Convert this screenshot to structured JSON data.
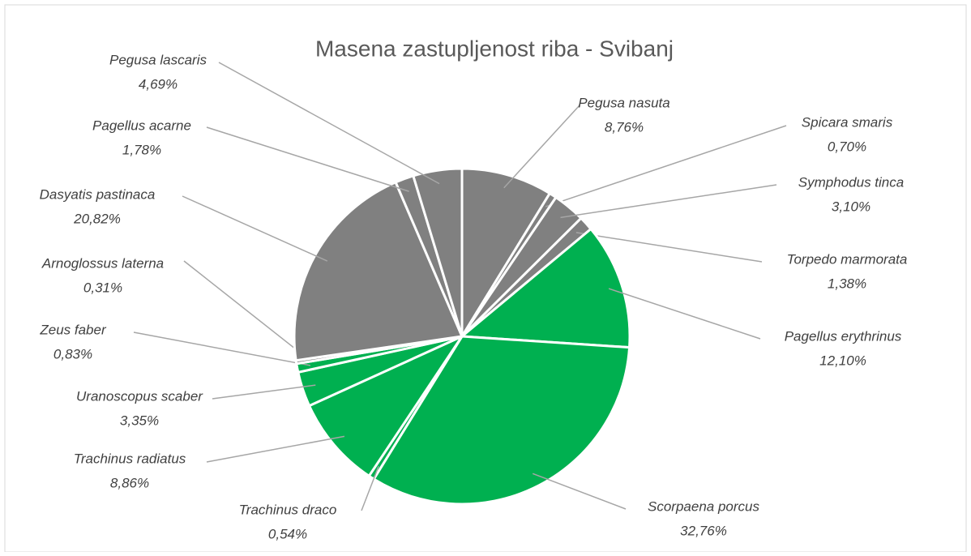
{
  "chart_data": {
    "type": "pie",
    "title": "Masena zastupljenost riba - Svibanj",
    "categories": [
      "Pegusa nasuta",
      "Spicara smaris",
      "Symphodus tinca",
      "Torpedo marmorata",
      "Pagellus erythrinus",
      "Scorpaena porcus",
      "Trachinus draco",
      "Trachinus radiatus",
      "Uranoscopus scaber",
      "Zeus faber",
      "Arnoglossus laterna",
      "Dasyatis pastinaca",
      "Pagellus acarne",
      "Pegusa lascaris"
    ],
    "values": [
      8.76,
      0.7,
      3.1,
      1.38,
      12.1,
      32.76,
      0.54,
      8.86,
      3.35,
      0.83,
      0.31,
      20.82,
      1.78,
      4.69
    ],
    "value_labels": [
      "8,76%",
      "0,70%",
      "3,10%",
      "1,38%",
      "12,10%",
      "32,76%",
      "0,54%",
      "8,86%",
      "3,35%",
      "0,83%",
      "0,31%",
      "20,82%",
      "1,78%",
      "4,69%"
    ],
    "colors": [
      "#808080",
      "#808080",
      "#808080",
      "#808080",
      "#00b050",
      "#00b050",
      "#00b050",
      "#00b050",
      "#00b050",
      "#00b050",
      "#808080",
      "#808080",
      "#808080",
      "#808080"
    ]
  }
}
